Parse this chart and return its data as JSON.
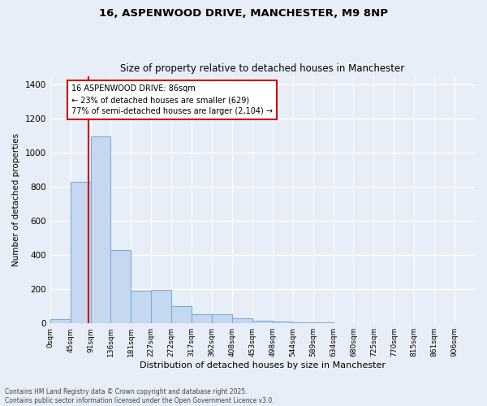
{
  "title": "16, ASPENWOOD DRIVE, MANCHESTER, M9 8NP",
  "subtitle": "Size of property relative to detached houses in Manchester",
  "xlabel": "Distribution of detached houses by size in Manchester",
  "ylabel": "Number of detached properties",
  "bar_color": "#c5d8f0",
  "bar_edge_color": "#7badd6",
  "background_color": "#e8eef8",
  "grid_color": "#ffffff",
  "categories": [
    "0sqm",
    "45sqm",
    "91sqm",
    "136sqm",
    "181sqm",
    "227sqm",
    "272sqm",
    "317sqm",
    "362sqm",
    "408sqm",
    "453sqm",
    "498sqm",
    "544sqm",
    "589sqm",
    "634sqm",
    "680sqm",
    "725sqm",
    "770sqm",
    "815sqm",
    "861sqm",
    "906sqm"
  ],
  "bar_heights": [
    25,
    830,
    1095,
    430,
    190,
    195,
    100,
    55,
    55,
    30,
    15,
    10,
    5,
    5,
    3,
    2,
    1,
    0,
    0,
    0,
    0
  ],
  "ylim": [
    0,
    1450
  ],
  "yticks": [
    0,
    200,
    400,
    600,
    800,
    1000,
    1200,
    1400
  ],
  "property_sqm": 86,
  "property_line_color": "#cc0000",
  "annotation_text": "16 ASPENWOOD DRIVE: 86sqm\n← 23% of detached houses are smaller (629)\n77% of semi-detached houses are larger (2,104) →",
  "annotation_box_color": "#ffffff",
  "annotation_box_edge": "#cc0000",
  "footer_line1": "Contains HM Land Registry data © Crown copyright and database right 2025.",
  "footer_line2": "Contains public sector information licensed under the Open Government Licence v3.0.",
  "bin_width": 45,
  "n_bins": 21
}
